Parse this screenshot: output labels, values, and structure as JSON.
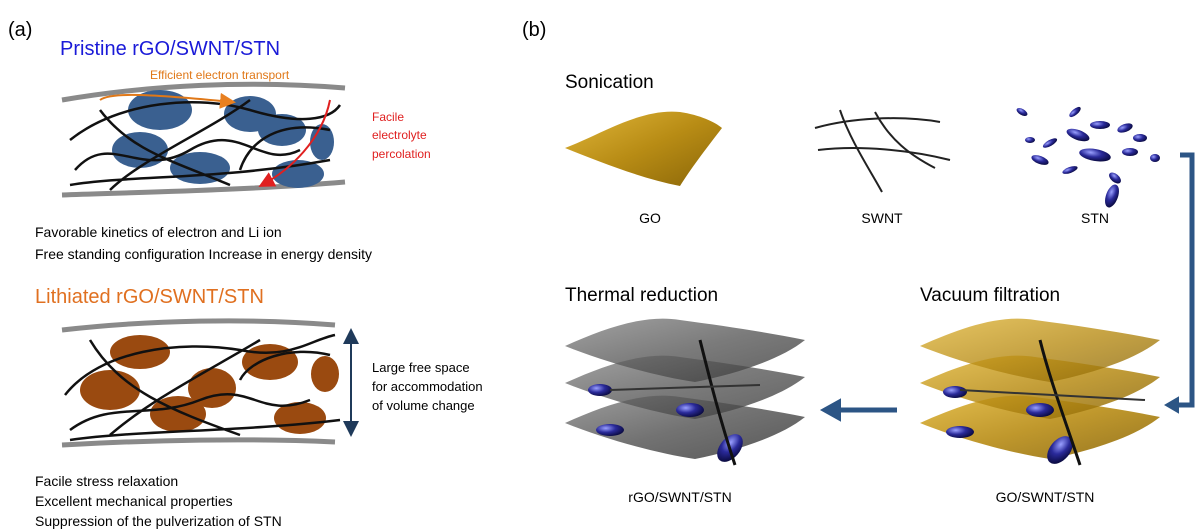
{
  "panel_a": {
    "label": "(a)",
    "pristine": {
      "title": "Pristine rGO/SWNT/STN",
      "electron_note": "Efficient electron transport",
      "electrolyte_note": [
        "Facile",
        "electrolyte",
        "percolation"
      ],
      "notes": [
        "Favorable kinetics of electron and Li ion",
        "Free standing configuration Increase in energy density"
      ]
    },
    "lithiated": {
      "title": "Lithiated rGO/SWNT/STN",
      "space_note": [
        "Large free  space",
        "for accommodation",
        "of volume change"
      ],
      "notes": [
        "Facile stress relaxation",
        "Excellent mechanical properties",
        "Suppression of the pulverization of STN"
      ]
    }
  },
  "panel_b": {
    "label": "(b)",
    "steps": [
      "Sonication",
      "Thermal reduction",
      "Vacuum filtration"
    ],
    "materials": [
      "GO",
      "SWNT",
      "STN"
    ],
    "products": [
      "rGO/SWNT/STN",
      "GO/SWNT/STN"
    ]
  }
}
